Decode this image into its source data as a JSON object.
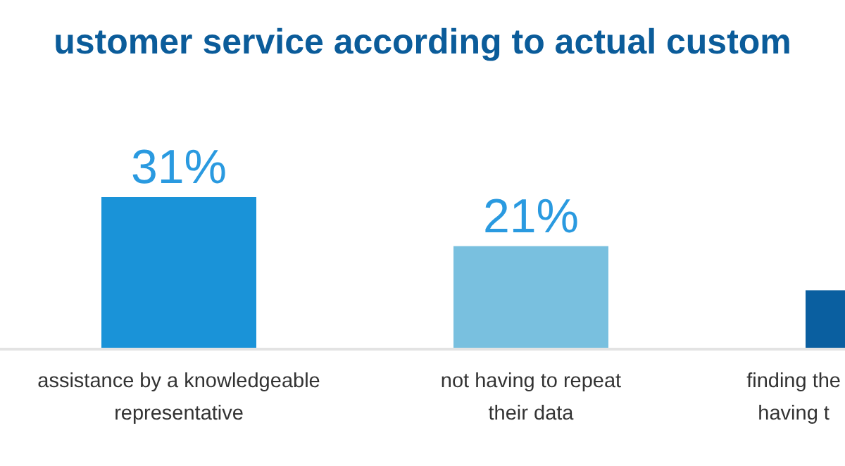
{
  "chart_data": {
    "type": "bar",
    "title": "ustomer service according to actual custom",
    "categories": [
      "assistance by a knowledgeable\nrepresentative",
      "not having to repeat\ntheir data",
      "finding the\nhaving t"
    ],
    "values": [
      31,
      21,
      12
    ],
    "colors": [
      "#1a93d8",
      "#79c0df",
      "#0a5fa0"
    ],
    "value_labels": [
      "31%",
      "21%",
      null
    ]
  }
}
